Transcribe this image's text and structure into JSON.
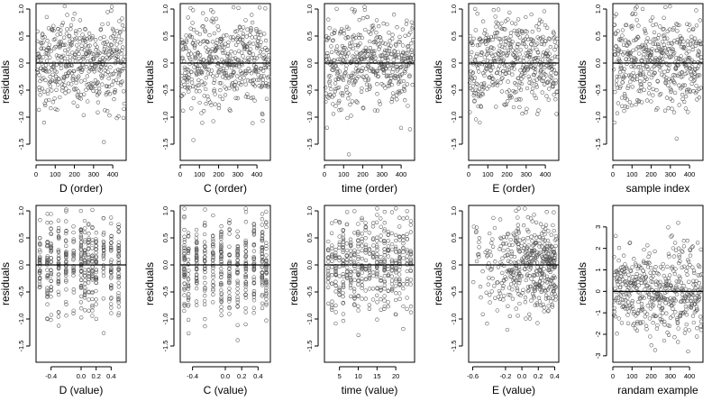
{
  "colors": {
    "points": "#555555",
    "axis": "#000000",
    "background": "#ffffff"
  },
  "chart_data": [
    {
      "type": "scatter",
      "row": 0,
      "col": 0,
      "xlabel": "D (order)",
      "ylabel": "residuals",
      "xlim": [
        0,
        470
      ],
      "ylim": [
        -1.8,
        1.1
      ],
      "xticks": [
        0,
        100,
        200,
        300,
        400
      ],
      "xtick_labels": [
        "0",
        "100",
        "200",
        "300",
        "400"
      ],
      "yticks": [
        -1.5,
        -1.0,
        -0.5,
        0.0,
        0.5,
        1.0
      ],
      "ytick_labels": [
        "-1.5",
        "-1.0",
        "-0.5",
        "0.0",
        "0.5",
        "1.0"
      ],
      "hline": 0,
      "n_points": 460,
      "x_mode": "order",
      "y_mode": "resid",
      "y_scale": 0.42
    },
    {
      "type": "scatter",
      "row": 0,
      "col": 1,
      "xlabel": "C (order)",
      "ylabel": "residuals",
      "xlim": [
        0,
        470
      ],
      "ylim": [
        -1.8,
        1.1
      ],
      "xticks": [
        0,
        100,
        200,
        300,
        400
      ],
      "xtick_labels": [
        "0",
        "100",
        "200",
        "300",
        "400"
      ],
      "yticks": [
        -1.5,
        -1.0,
        -0.5,
        0.0,
        0.5,
        1.0
      ],
      "ytick_labels": [
        "-1.5",
        "-1.0",
        "-0.5",
        "0.0",
        "0.5",
        "1.0"
      ],
      "hline": 0,
      "n_points": 460,
      "x_mode": "order",
      "y_mode": "resid",
      "y_scale": 0.42
    },
    {
      "type": "scatter",
      "row": 0,
      "col": 2,
      "xlabel": "time (order)",
      "ylabel": "residuals",
      "xlim": [
        0,
        470
      ],
      "ylim": [
        -1.8,
        1.1
      ],
      "xticks": [
        0,
        100,
        200,
        300,
        400
      ],
      "xtick_labels": [
        "0",
        "100",
        "200",
        "300",
        "400"
      ],
      "yticks": [
        -1.5,
        -1.0,
        -0.5,
        0.0,
        0.5,
        1.0
      ],
      "ytick_labels": [
        "-1.5",
        "-1.0",
        "-0.5",
        "0.0",
        "0.5",
        "1.0"
      ],
      "hline": 0,
      "n_points": 460,
      "x_mode": "order",
      "y_mode": "resid",
      "y_scale": 0.42
    },
    {
      "type": "scatter",
      "row": 0,
      "col": 3,
      "xlabel": "E (order)",
      "ylabel": "residuals",
      "xlim": [
        0,
        470
      ],
      "ylim": [
        -1.8,
        1.1
      ],
      "xticks": [
        0,
        100,
        200,
        300,
        400
      ],
      "xtick_labels": [
        "0",
        "100",
        "200",
        "300",
        "400"
      ],
      "yticks": [
        -1.5,
        -1.0,
        -0.5,
        0.0,
        0.5,
        1.0
      ],
      "ytick_labels": [
        "-1.5",
        "-1.0",
        "-0.5",
        "0.0",
        "0.5",
        "1.0"
      ],
      "hline": 0,
      "n_points": 460,
      "x_mode": "order",
      "y_mode": "resid",
      "y_scale": 0.42
    },
    {
      "type": "scatter",
      "row": 0,
      "col": 4,
      "xlabel": "sample index",
      "ylabel": "residuals",
      "xlim": [
        0,
        470
      ],
      "ylim": [
        -1.8,
        1.1
      ],
      "xticks": [
        0,
        100,
        200,
        300,
        400
      ],
      "xtick_labels": [
        "0",
        "100",
        "200",
        "300",
        "400"
      ],
      "yticks": [
        -1.5,
        -1.0,
        -0.5,
        0.0,
        0.5,
        1.0
      ],
      "ytick_labels": [
        "-1.5",
        "-1.0",
        "-0.5",
        "0.0",
        "0.5",
        "1.0"
      ],
      "hline": 0,
      "n_points": 460,
      "x_mode": "order",
      "y_mode": "resid",
      "y_scale": 0.42
    },
    {
      "type": "scatter",
      "row": 1,
      "col": 0,
      "xlabel": "D (value)",
      "ylabel": "residuals",
      "xlim": [
        -0.6,
        0.6
      ],
      "ylim": [
        -1.8,
        1.1
      ],
      "xticks": [
        -0.4,
        0.0,
        0.2,
        0.4
      ],
      "xtick_labels": [
        "-0.4",
        "0.0",
        "0.2",
        "0.4"
      ],
      "yticks": [
        -1.5,
        -1.0,
        -0.5,
        0.0,
        0.5,
        1.0
      ],
      "ytick_labels": [
        "-1.5",
        "-1.0",
        "-0.5",
        "0.0",
        "0.5",
        "1.0"
      ],
      "hline": 0,
      "n_points": 460,
      "x_mode": "discrete",
      "levels": [
        -0.55,
        -0.45,
        -0.4,
        -0.3,
        -0.2,
        -0.1,
        0.0,
        0.05,
        0.1,
        0.15,
        0.2,
        0.3,
        0.4,
        0.5
      ],
      "y_mode": "resid",
      "y_scale": 0.42
    },
    {
      "type": "scatter",
      "row": 1,
      "col": 1,
      "xlabel": "C (value)",
      "ylabel": "residuals",
      "xlim": [
        -0.55,
        0.55
      ],
      "ylim": [
        -1.8,
        1.1
      ],
      "xticks": [
        -0.4,
        0.0,
        0.2,
        0.4
      ],
      "xtick_labels": [
        "-0.4",
        "0.0",
        "0.2",
        "0.4"
      ],
      "yticks": [
        -1.5,
        -1.0,
        -0.5,
        0.0,
        0.5,
        1.0
      ],
      "ytick_labels": [
        "-1.5",
        "-1.0",
        "-0.5",
        "0.0",
        "0.5",
        "1.0"
      ],
      "hline": 0,
      "n_points": 460,
      "x_mode": "discrete",
      "levels": [
        -0.5,
        -0.45,
        -0.35,
        -0.25,
        -0.15,
        -0.05,
        0.05,
        0.15,
        0.25,
        0.35,
        0.45,
        0.5
      ],
      "y_mode": "resid",
      "y_scale": 0.42
    },
    {
      "type": "scatter",
      "row": 1,
      "col": 2,
      "xlabel": "time (value)",
      "ylabel": "residuals",
      "xlim": [
        1,
        25
      ],
      "ylim": [
        -1.8,
        1.1
      ],
      "xticks": [
        5,
        10,
        15,
        20
      ],
      "xtick_labels": [
        "5",
        "10",
        "15",
        "20"
      ],
      "yticks": [
        -1.5,
        -1.0,
        -0.5,
        0.0,
        0.5,
        1.0
      ],
      "ytick_labels": [
        "-1.5",
        "-1.0",
        "-0.5",
        "0.0",
        "0.5",
        "1.0"
      ],
      "hline": 0,
      "n_points": 460,
      "x_mode": "discrete",
      "levels": [
        2,
        3,
        4,
        5,
        6,
        7,
        8,
        9,
        10,
        11,
        12,
        13,
        14,
        15,
        16,
        17,
        18,
        19,
        20,
        21,
        22,
        23,
        24
      ],
      "y_mode": "resid",
      "y_scale": 0.42
    },
    {
      "type": "scatter",
      "row": 1,
      "col": 3,
      "xlabel": "E (value)",
      "ylabel": "residuals",
      "xlim": [
        -0.65,
        0.45
      ],
      "ylim": [
        -1.8,
        1.1
      ],
      "xticks": [
        -0.6,
        -0.2,
        0.0,
        0.2,
        0.4
      ],
      "xtick_labels": [
        "-0.6",
        "-0.2",
        "0.0",
        "0.2",
        "0.4"
      ],
      "yticks": [
        -1.5,
        -1.0,
        -0.5,
        0.0,
        0.5,
        1.0
      ],
      "ytick_labels": [
        "-1.5",
        "-1.0",
        "-0.5",
        "0.0",
        "0.5",
        "1.0"
      ],
      "hline": 0,
      "n_points": 460,
      "x_mode": "skew",
      "y_mode": "resid",
      "y_scale": 0.42
    },
    {
      "type": "scatter",
      "row": 1,
      "col": 4,
      "xlabel": "randam example",
      "ylabel": "residuals",
      "xlim": [
        0,
        470
      ],
      "ylim": [
        -3.3,
        4.0
      ],
      "xticks": [
        0,
        100,
        200,
        300,
        400
      ],
      "xtick_labels": [
        "0",
        "100",
        "200",
        "300",
        "400"
      ],
      "yticks": [
        -3,
        -2,
        -1,
        0,
        1,
        2,
        3
      ],
      "ytick_labels": [
        "-3",
        "-2",
        "-1",
        "0",
        "1",
        "2",
        "3"
      ],
      "hline": 0,
      "n_points": 460,
      "x_mode": "order",
      "y_mode": "normal",
      "y_scale": 1.0
    }
  ]
}
